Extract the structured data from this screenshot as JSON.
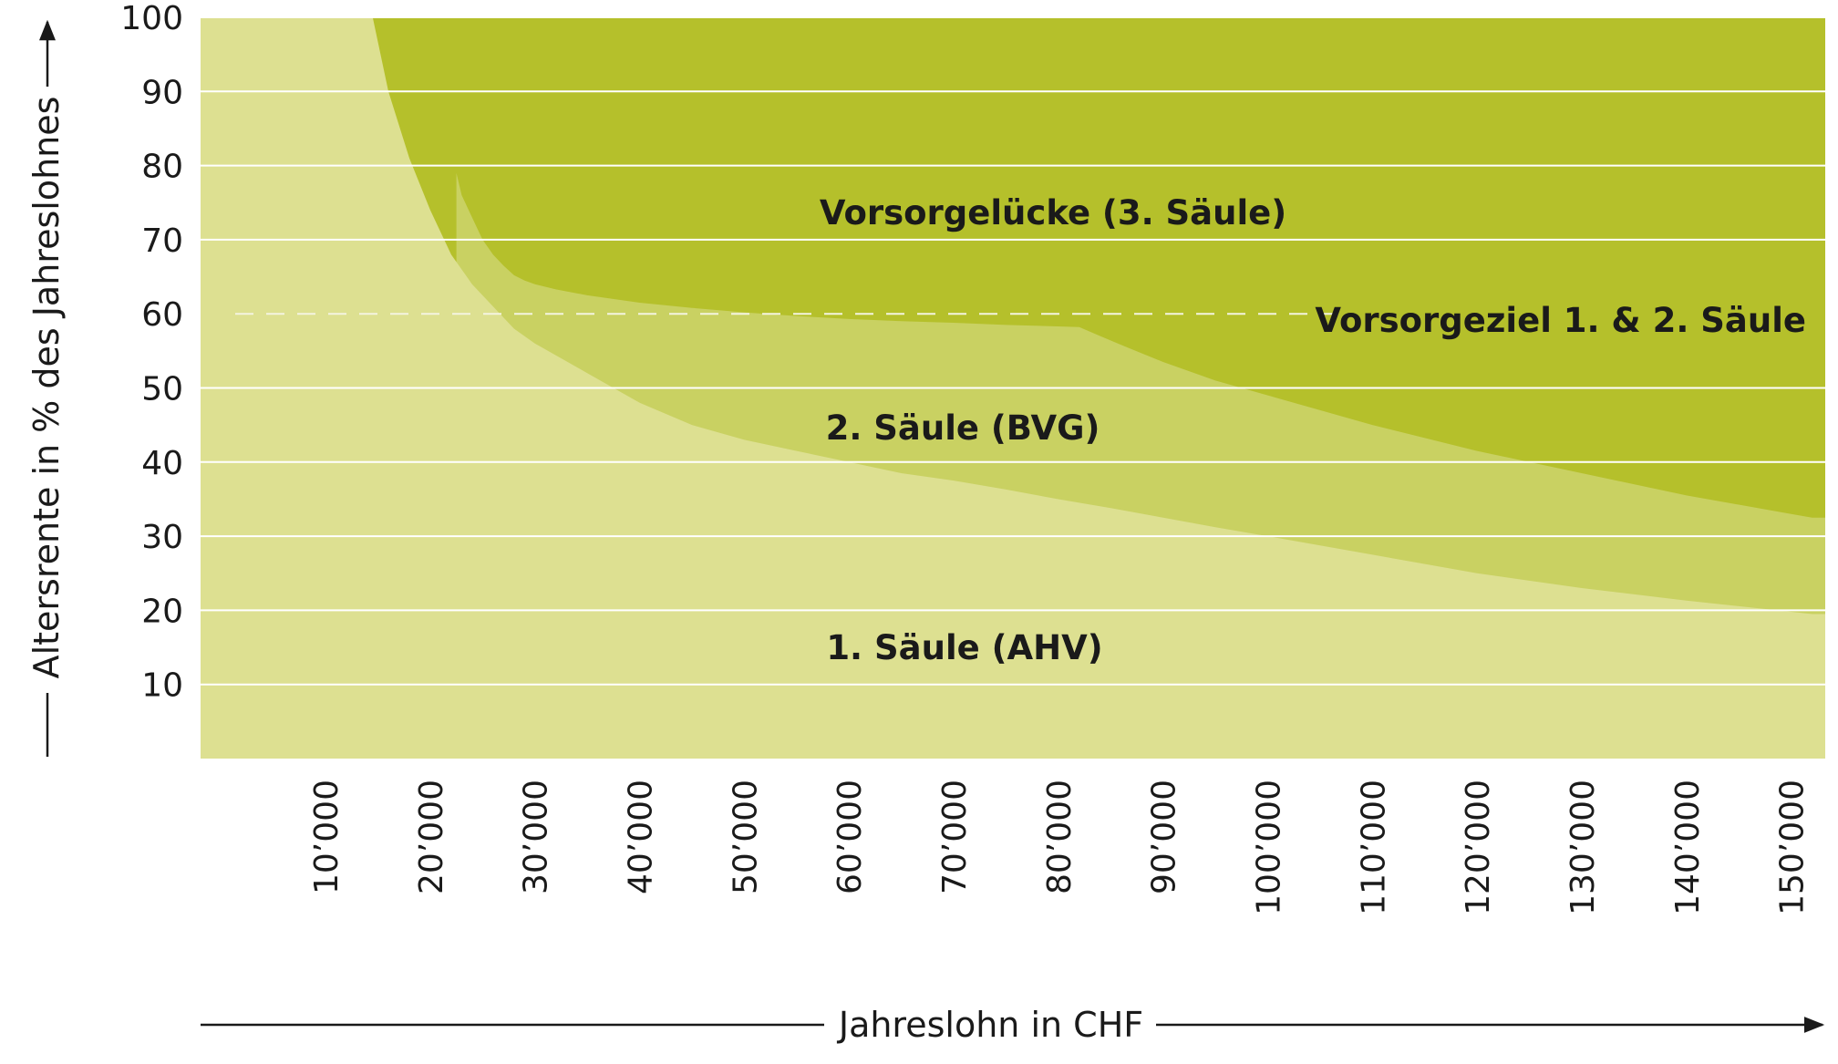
{
  "chart_data": {
    "type": "area",
    "title": "",
    "xlabel": "Jahreslohn in CHF",
    "ylabel": "Altersrente in % des Jahreslohnes",
    "xlim": [
      0,
      152000
    ],
    "ylim": [
      0,
      100
    ],
    "x_ticks": [
      10000,
      20000,
      30000,
      40000,
      50000,
      60000,
      70000,
      80000,
      90000,
      100000,
      110000,
      120000,
      130000,
      140000,
      150000
    ],
    "x_tick_labels": [
      "10’000",
      "20’000",
      "30’000",
      "40’000",
      "50’000",
      "60’000",
      "70’000",
      "80’000",
      "90’000",
      "100’000",
      "110’000",
      "120’000",
      "130’000",
      "140’000",
      "150’000"
    ],
    "y_ticks": [
      10,
      20,
      30,
      40,
      50,
      60,
      70,
      80,
      90,
      100
    ],
    "y_tick_labels": [
      "10",
      "20",
      "30",
      "40",
      "50",
      "60",
      "70",
      "80",
      "90",
      "100"
    ],
    "grid": true,
    "colors": {
      "ahv": "#dde091",
      "bvg": "#c9d162",
      "luecke": "#b5c02b",
      "grid": "#ffffff",
      "target_line": "#f4f4e0"
    },
    "series": [
      {
        "name": "1. Säule (AHV)",
        "x": [
          14500,
          16000,
          18000,
          20000,
          22000,
          24000,
          26000,
          28000,
          30000,
          35000,
          40000,
          45000,
          50000,
          55000,
          60000,
          65000,
          70000,
          75000,
          80000,
          85000,
          90000,
          95000,
          100000,
          110000,
          120000,
          130000,
          140000,
          150000,
          152000
        ],
        "y": [
          100,
          90,
          81,
          74,
          68,
          64,
          61,
          58,
          56,
          52,
          48,
          45,
          43,
          41.5,
          40,
          38.5,
          37.5,
          36.3,
          35,
          33.8,
          32.5,
          31.2,
          30,
          27.5,
          25,
          23,
          21.3,
          19.8,
          19.5
        ]
      },
      {
        "name": "2. Säule (BVG)",
        "x": [
          22500,
          23000,
          24000,
          25000,
          26000,
          27000,
          28000,
          29000,
          30000,
          32000,
          35000,
          40000,
          45000,
          50000,
          55000,
          60000,
          65000,
          70000,
          75000,
          80000,
          82000,
          84000,
          86000,
          90000,
          95000,
          100000,
          110000,
          120000,
          130000,
          140000,
          150000,
          152000
        ],
        "y": [
          79,
          76,
          73,
          70,
          68,
          66.5,
          65.2,
          64.5,
          64,
          63.3,
          62.5,
          61.5,
          60.8,
          60.2,
          59.7,
          59.3,
          59,
          58.8,
          58.5,
          58.3,
          58.2,
          57,
          55.8,
          53.5,
          51,
          49,
          45,
          41.5,
          38.5,
          35.5,
          33,
          32.5
        ]
      },
      {
        "name": "Vorsorgelücke (3. Säule)",
        "y_top": 100
      }
    ],
    "target_line": {
      "label": "Vorsorgeziel 1. & 2. Säule",
      "value": 60
    },
    "annotations": {
      "luecke": "Vorsorgelücke (3. Säule)",
      "bvg": "2. Säule (BVG)",
      "ahv": "1. Säule (AHV)"
    }
  }
}
